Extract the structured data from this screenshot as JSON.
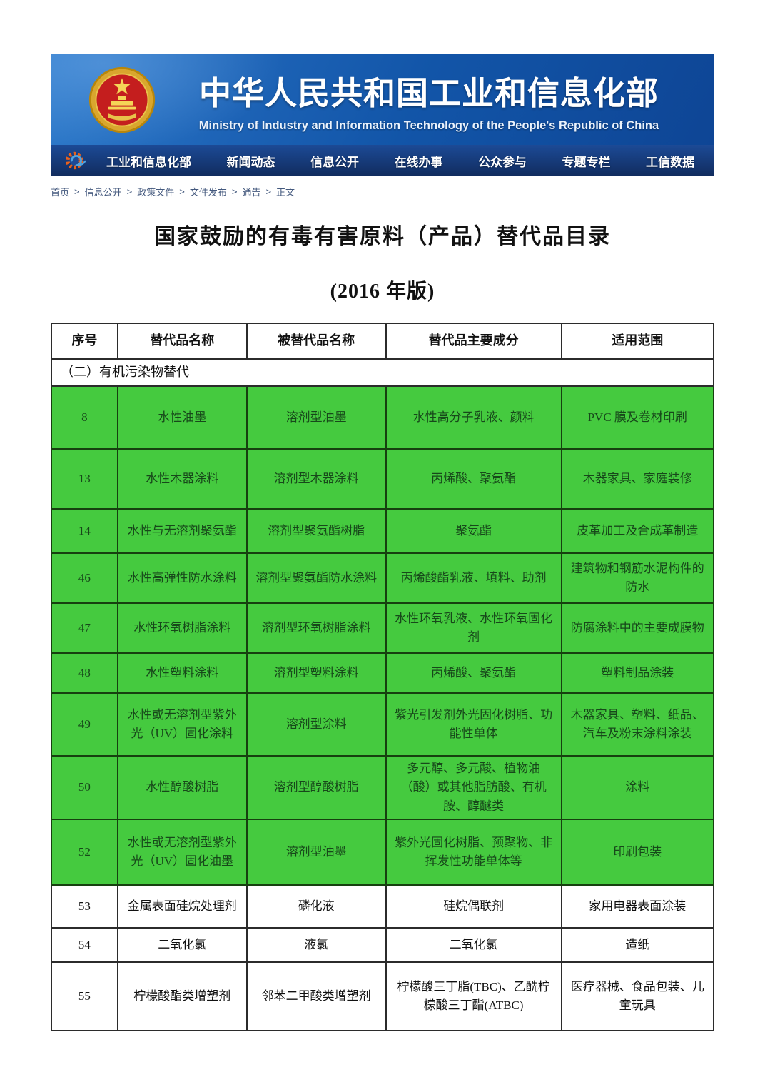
{
  "banner": {
    "title_cn": "中华人民共和国工业和信息化部",
    "title_en": "Ministry of Industry and Information Technology of the People's Republic of China",
    "nav_items": [
      "工业和信息化部",
      "新闻动态",
      "信息公开",
      "在线办事",
      "公众参与",
      "专题专栏",
      "工信数据"
    ]
  },
  "breadcrumb": {
    "items": [
      "首页",
      "信息公开",
      "政策文件",
      "文件发布",
      "通告",
      "正文"
    ],
    "separator": ">"
  },
  "document": {
    "title": "国家鼓励的有毒有害原料（产品）替代品目录",
    "subtitle": "(2016 年版)"
  },
  "table": {
    "headers": [
      "序号",
      "替代品名称",
      "被替代品名称",
      "替代品主要成分",
      "适用范围"
    ],
    "section_label": "（二）有机污染物替代",
    "rows": [
      {
        "no": "8",
        "name": "水性油墨",
        "replaced": "溶剂型油墨",
        "components": "水性高分子乳液、颜料",
        "scope": "PVC 膜及卷材印刷",
        "highlight": true
      },
      {
        "no": "13",
        "name": "水性木器涂料",
        "replaced": "溶剂型木器涂料",
        "components": "丙烯酸、聚氨酯",
        "scope": "木器家具、家庭装修",
        "highlight": true
      },
      {
        "no": "14",
        "name": "水性与无溶剂聚氨酯",
        "replaced": "溶剂型聚氨酯树脂",
        "components": "聚氨酯",
        "scope": "皮革加工及合成革制造",
        "highlight": true
      },
      {
        "no": "46",
        "name": "水性高弹性防水涂料",
        "replaced": "溶剂型聚氨酯防水涂料",
        "components": "丙烯酸酯乳液、填料、助剂",
        "scope": "建筑物和钢筋水泥构件的防水",
        "highlight": true
      },
      {
        "no": "47",
        "name": "水性环氧树脂涂料",
        "replaced": "溶剂型环氧树脂涂料",
        "components": "水性环氧乳液、水性环氧固化剂",
        "scope": "防腐涂料中的主要成膜物",
        "highlight": true
      },
      {
        "no": "48",
        "name": "水性塑料涂料",
        "replaced": "溶剂型塑料涂料",
        "components": "丙烯酸、聚氨酯",
        "scope": "塑料制品涂装",
        "highlight": true
      },
      {
        "no": "49",
        "name": "水性或无溶剂型紫外光（UV）固化涂料",
        "replaced": "溶剂型涂料",
        "components": "紫光引发剂外光固化树脂、功能性单体",
        "scope": "木器家具、塑料、纸品、汽车及粉末涂料涂装",
        "highlight": true
      },
      {
        "no": "50",
        "name": "水性醇酸树脂",
        "replaced": "溶剂型醇酸树脂",
        "components": "多元醇、多元酸、植物油（酸）或其他脂肪酸、有机胺、醇醚类",
        "scope": "涂料",
        "highlight": true
      },
      {
        "no": "52",
        "name": "水性或无溶剂型紫外光（UV）固化油墨",
        "replaced": "溶剂型油墨",
        "components": "紫外光固化树脂、预聚物、非挥发性功能单体等",
        "scope": "印刷包装",
        "highlight": true
      },
      {
        "no": "53",
        "name": "金属表面硅烷处理剂",
        "replaced": "磷化液",
        "components": "硅烷偶联剂",
        "scope": "家用电器表面涂装",
        "highlight": false
      },
      {
        "no": "54",
        "name": "二氧化氯",
        "replaced": "液氯",
        "components": "二氧化氯",
        "scope": "造纸",
        "highlight": false
      },
      {
        "no": "55",
        "name": "柠檬酸酯类增塑剂",
        "replaced": "邻苯二甲酸类增塑剂",
        "components": "柠檬酸三丁脂(TBC)、乙酰柠檬酸三丁酯(ATBC)",
        "scope": "医疗器械、食品包装、儿童玩具",
        "highlight": false
      }
    ]
  },
  "colors": {
    "highlight_green": "#45ca3f",
    "banner_blue": "#1255a8",
    "nav_blue": "#112c5e"
  }
}
